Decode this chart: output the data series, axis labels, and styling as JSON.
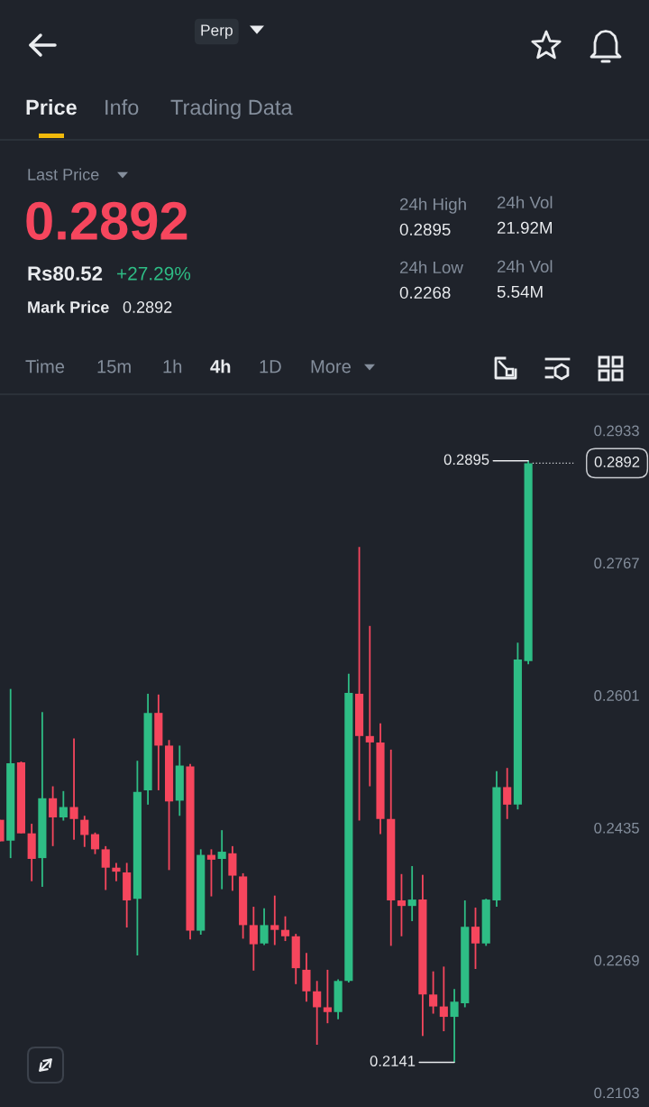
{
  "chart_data": {
    "type": "candlestick",
    "categories": [
      null,
      null,
      null,
      null,
      null,
      null,
      null,
      null,
      null,
      null,
      null,
      null,
      null,
      null,
      null,
      null,
      null,
      null,
      null,
      null,
      null,
      null,
      null,
      null,
      null,
      null,
      null,
      null,
      null,
      null,
      null,
      null,
      null,
      null,
      null,
      null,
      null,
      null,
      null,
      null,
      null,
      null,
      null,
      null,
      null,
      null,
      null,
      null,
      null,
      null,
      null
    ],
    "ohlc": [
      [
        0.2445,
        0.2445,
        0.2418,
        0.2418
      ],
      [
        0.2419,
        0.2609,
        0.2397,
        0.2516
      ],
      [
        0.2517,
        0.2518,
        0.2428,
        0.2428
      ],
      [
        0.2428,
        0.244,
        0.2368,
        0.2396
      ],
      [
        0.2397,
        0.258,
        0.2361,
        0.2472
      ],
      [
        0.2472,
        0.2487,
        0.2412,
        0.2448
      ],
      [
        0.2448,
        0.2481,
        0.2444,
        0.2461
      ],
      [
        0.2461,
        0.2547,
        0.242,
        0.2446
      ],
      [
        0.2445,
        0.245,
        0.2411,
        0.2426
      ],
      [
        0.2427,
        0.2429,
        0.2402,
        0.2408
      ],
      [
        0.2408,
        0.2412,
        0.2357,
        0.2385
      ],
      [
        0.2385,
        0.2391,
        0.2368,
        0.238
      ],
      [
        0.2379,
        0.2391,
        0.231,
        0.2344
      ],
      [
        0.2346,
        0.2519,
        0.2275,
        0.248
      ],
      [
        0.2482,
        0.2603,
        0.2464,
        0.2579
      ],
      [
        0.2579,
        0.2602,
        0.2482,
        0.2538
      ],
      [
        0.2538,
        0.2545,
        0.2382,
        0.2468
      ],
      [
        0.2469,
        0.2538,
        0.245,
        0.2513
      ],
      [
        0.2512,
        0.2515,
        0.2295,
        0.2306
      ],
      [
        0.2306,
        0.2408,
        0.2301,
        0.2401
      ],
      [
        0.2401,
        0.2408,
        0.2349,
        0.2395
      ],
      [
        0.2396,
        0.2432,
        0.2358,
        0.2405
      ],
      [
        0.2403,
        0.2412,
        0.2356,
        0.2375
      ],
      [
        0.2374,
        0.2378,
        0.2296,
        0.2313
      ],
      [
        0.2313,
        0.2336,
        0.2256,
        0.2289
      ],
      [
        0.229,
        0.2334,
        0.2288,
        0.2313
      ],
      [
        0.2313,
        0.235,
        0.2288,
        0.2307
      ],
      [
        0.2307,
        0.2324,
        0.2293,
        0.2299
      ],
      [
        0.2299,
        0.2302,
        0.2239,
        0.2259
      ],
      [
        0.2257,
        0.2278,
        0.2217,
        0.223
      ],
      [
        0.223,
        0.2243,
        0.2163,
        0.221
      ],
      [
        0.221,
        0.2257,
        0.219,
        0.2204
      ],
      [
        0.2204,
        0.2245,
        0.2195,
        0.2243
      ],
      [
        0.2243,
        0.2628,
        0.2241,
        0.2604
      ],
      [
        0.2603,
        0.2787,
        0.2444,
        0.255
      ],
      [
        0.255,
        0.2688,
        0.2487,
        0.2542
      ],
      [
        0.2542,
        0.2566,
        0.2427,
        0.2446
      ],
      [
        0.2446,
        0.2533,
        0.2287,
        0.2344
      ],
      [
        0.2344,
        0.2377,
        0.2299,
        0.2337
      ],
      [
        0.2337,
        0.2387,
        0.2318,
        0.2345
      ],
      [
        0.2345,
        0.2376,
        0.2174,
        0.2226
      ],
      [
        0.2226,
        0.2255,
        0.2202,
        0.2211
      ],
      [
        0.2211,
        0.2261,
        0.218,
        0.2198
      ],
      [
        0.2198,
        0.2233,
        0.2141,
        0.2217
      ],
      [
        0.2215,
        0.2344,
        0.221,
        0.2311
      ],
      [
        0.2311,
        0.2335,
        0.2258,
        0.229
      ],
      [
        0.229,
        0.2346,
        0.2287,
        0.2345
      ],
      [
        0.2344,
        0.2506,
        0.2336,
        0.2486
      ],
      [
        0.2486,
        0.251,
        0.2446,
        0.2464
      ],
      [
        0.2464,
        0.2667,
        0.2458,
        0.2646
      ],
      [
        0.2644,
        0.2895,
        0.264,
        0.2892
      ]
    ],
    "colors": [
      "#f6465d",
      "#2ebd85",
      "#f6465d",
      "#f6465d",
      "#2ebd85",
      "#f6465d",
      "#2ebd85",
      "#f6465d",
      "#f6465d",
      "#f6465d",
      "#f6465d",
      "#f6465d",
      "#f6465d",
      "#2ebd85",
      "#2ebd85",
      "#f6465d",
      "#f6465d",
      "#2ebd85",
      "#f6465d",
      "#2ebd85",
      "#f6465d",
      "#2ebd85",
      "#f6465d",
      "#f6465d",
      "#f6465d",
      "#2ebd85",
      "#f6465d",
      "#f6465d",
      "#f6465d",
      "#f6465d",
      "#f6465d",
      "#f6465d",
      "#2ebd85",
      "#2ebd85",
      "#f6465d",
      "#f6465d",
      "#f6465d",
      "#f6465d",
      "#f6465d",
      "#2ebd85",
      "#f6465d",
      "#f6465d",
      "#f6465d",
      "#2ebd85",
      "#2ebd85",
      "#f6465d",
      "#2ebd85",
      "#2ebd85",
      "#f6465d",
      "#2ebd85",
      "#2ebd85"
    ],
    "ylim": [
      0.2085,
      0.2975
    ],
    "yticks": [
      0.2103,
      0.2269,
      0.2435,
      0.2601,
      0.2767,
      0.2933
    ],
    "tick_labels": "y",
    "ref_lines": [
      {
        "axis": "y",
        "value": 0.2892,
        "label": "0.2892",
        "line_style": "dotted",
        "color": "#c9ccd1"
      }
    ],
    "annotations": [
      "Perp",
      "Price",
      "Info",
      "Trading Data",
      "Last Price",
      "0.2892",
      "Rs80.52",
      "+27.29%",
      "Mark Price",
      "0.2892",
      "24h High",
      "0.2895",
      "24h Vol",
      "21.92M",
      "24h Low",
      "0.2268",
      "24h Vol",
      "5.54M",
      "Time",
      "15m",
      "1h",
      "4h",
      "1D",
      "More",
      "0.2895",
      "0.2141"
    ]
  }
}
